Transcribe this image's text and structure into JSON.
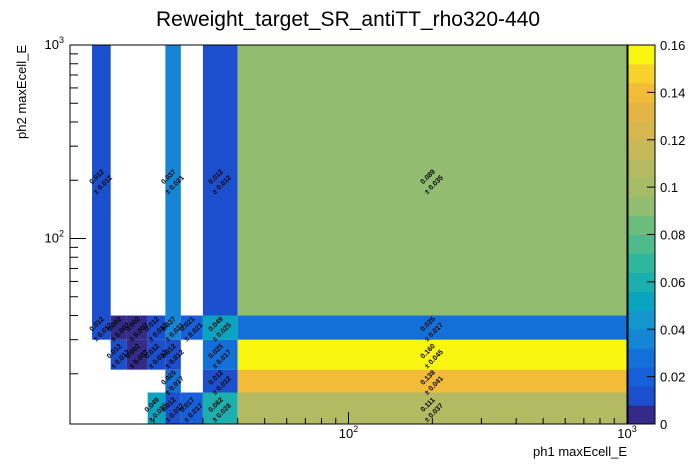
{
  "chart_data": {
    "type": "heatmap",
    "title": "Reweight_target_SR_antiTT_rho320-440",
    "x_label": "ph1 maxEcell_E",
    "y_label": "ph2 maxEcell_E",
    "log_x": true,
    "log_y": true,
    "xlim": [
      10,
      1000
    ],
    "ylim": [
      11,
      1000
    ],
    "xticks": [
      {
        "value": 100,
        "label": "10",
        "exponent": "2"
      },
      {
        "value": 1000,
        "label": "10",
        "exponent": "3"
      }
    ],
    "yticks": [
      {
        "value": 100,
        "label": "10",
        "exponent": "2"
      },
      {
        "value": 1000,
        "label": "10",
        "exponent": "3"
      }
    ],
    "xminorticks": [
      20,
      30,
      40,
      50,
      60,
      70,
      80,
      90,
      200,
      300,
      400,
      500,
      600,
      700,
      800,
      900
    ],
    "yminorticks": [
      20,
      30,
      40,
      50,
      60,
      70,
      80,
      90,
      200,
      300,
      400,
      500,
      600,
      700,
      800,
      900
    ],
    "x_bins": [
      10,
      12,
      14,
      16,
      19,
      22,
      25,
      30,
      40,
      1000
    ],
    "y_bins": [
      11,
      16,
      21,
      30,
      40,
      1000
    ],
    "z": [
      [
        null,
        null,
        null,
        null,
        0.049,
        0.012,
        0.017,
        0.062,
        0.111
      ],
      [
        null,
        null,
        null,
        null,
        null,
        0.025,
        null,
        0.012,
        0.138
      ],
      [
        null,
        null,
        0.012,
        0.002,
        0.012,
        0.012,
        null,
        0.025,
        0.16
      ],
      [
        null,
        0.012,
        0.002,
        0.002,
        0.012,
        0.037,
        0.021,
        0.049,
        0.025
      ],
      [
        null,
        0.012,
        null,
        null,
        null,
        0.037,
        null,
        0.012,
        0.089
      ]
    ],
    "value_labels": [
      [
        null,
        null,
        null,
        null,
        "0.049",
        "0.012",
        "0.017",
        "0.062",
        "0.111"
      ],
      [
        null,
        null,
        null,
        null,
        null,
        "0.025",
        null,
        "0.012",
        "0.138"
      ],
      [
        null,
        null,
        "0.012",
        "0.002",
        "0.012",
        "0.012",
        null,
        "0.025",
        "0.160"
      ],
      [
        null,
        "0.012",
        "0.002",
        "0.002",
        "0.012",
        "0.037",
        "0.021",
        "0.049",
        "0.025"
      ],
      [
        null,
        "0.012",
        null,
        null,
        null,
        "0.037",
        null,
        "0.012",
        "0.089"
      ]
    ],
    "z_errors": [
      [
        null,
        null,
        null,
        null,
        0.035,
        0.012,
        0.017,
        0.028,
        0.037
      ],
      [
        null,
        null,
        null,
        null,
        null,
        0.017,
        null,
        0.012,
        0.041
      ],
      [
        null,
        null,
        0.012,
        0.002,
        0.012,
        0.012,
        null,
        0.017,
        0.045
      ],
      [
        null,
        0.012,
        0.002,
        0.002,
        0.012,
        0.021,
        0.021,
        0.025,
        0.017
      ],
      [
        null,
        0.012,
        null,
        null,
        null,
        0.021,
        null,
        0.012,
        0.035
      ]
    ],
    "error_labels": [
      [
        null,
        null,
        null,
        null,
        "± 0.035",
        "± 0.012",
        "± 0.017",
        "± 0.028",
        "± 0.037"
      ],
      [
        null,
        null,
        null,
        null,
        null,
        "± 0.017",
        null,
        "± 0.012",
        "± 0.041"
      ],
      [
        null,
        null,
        "± 0.012",
        "± 0.002",
        "± 0.012",
        "± 0.012",
        null,
        "± 0.017",
        "± 0.045"
      ],
      [
        null,
        "± 0.012",
        "± 0.002",
        "± 0.002",
        "± 0.012",
        "± 0.021",
        "± 0.021",
        "± 0.025",
        "± 0.017"
      ],
      [
        null,
        "± 0.012",
        null,
        null,
        null,
        "± 0.021",
        null,
        "± 0.012",
        "± 0.035"
      ]
    ],
    "zlim": [
      0,
      0.16
    ],
    "zticks": [
      0,
      0.02,
      0.04,
      0.06,
      0.08,
      0.1,
      0.12,
      0.14,
      0.16
    ],
    "palette": [
      "#352a87",
      "#1c4fcd",
      "#1660d9",
      "#1470d9",
      "#1585d6",
      "#1296cc",
      "#08a4c0",
      "#1bb0ae",
      "#2fb79d",
      "#4dbb8b",
      "#6cbd7c",
      "#92bd70",
      "#a7bc66",
      "#b4ba62",
      "#c6b95a",
      "#d6b64f",
      "#e4b544",
      "#f2bc38",
      "#f8d22c",
      "#f9f70f"
    ]
  }
}
